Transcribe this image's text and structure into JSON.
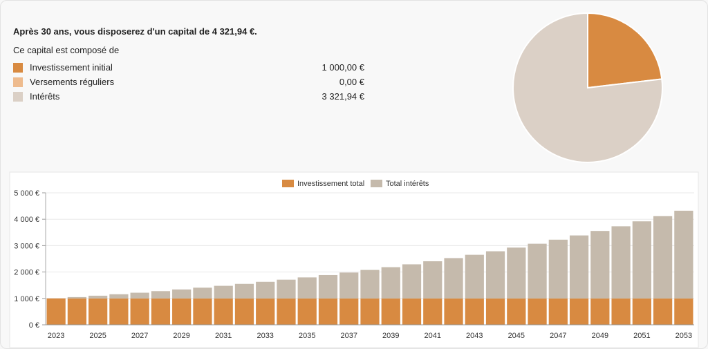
{
  "summary": {
    "headline": "Après 30 ans, vous disposerez d'un capital de 4 321,94 €.",
    "composition_label": "Ce capital est composé de",
    "items": [
      {
        "label": "Investissement initial",
        "value": "1 000,00 €",
        "color": "#d88a41"
      },
      {
        "label": "Versements réguliers",
        "value": "0,00 €",
        "color": "#eebb8e"
      },
      {
        "label": "Intérêts",
        "value": "3 321,94 €",
        "color": "#dbd0c6"
      }
    ]
  },
  "chart_data": [
    {
      "type": "pie",
      "slices": [
        {
          "label": "Investissement initial",
          "value": 1000.0,
          "color": "#d88a41"
        },
        {
          "label": "Versements réguliers",
          "value": 0.0,
          "color": "#eebb8e"
        },
        {
          "label": "Intérêts",
          "value": 3321.94,
          "color": "#dbd0c6"
        }
      ]
    },
    {
      "type": "bar",
      "stacked": true,
      "legend_position": "top",
      "grid": true,
      "ylim": [
        0,
        5000
      ],
      "yticks": [
        {
          "v": 0,
          "label": "0 €"
        },
        {
          "v": 1000,
          "label": "1 000 €"
        },
        {
          "v": 2000,
          "label": "2 000 €"
        },
        {
          "v": 3000,
          "label": "3 000 €"
        },
        {
          "v": 4000,
          "label": "4 000 €"
        },
        {
          "v": 5000,
          "label": "5 000 €"
        }
      ],
      "categories": [
        "2023",
        "2024",
        "2025",
        "2026",
        "2027",
        "2028",
        "2029",
        "2030",
        "2031",
        "2032",
        "2033",
        "2034",
        "2035",
        "2036",
        "2037",
        "2038",
        "2039",
        "2040",
        "2041",
        "2042",
        "2043",
        "2044",
        "2045",
        "2046",
        "2047",
        "2048",
        "2049",
        "2050",
        "2051",
        "2052",
        "2053"
      ],
      "xtick_labels": [
        "2023",
        "2025",
        "2027",
        "2029",
        "2031",
        "2033",
        "2035",
        "2037",
        "2039",
        "2041",
        "2043",
        "2045",
        "2047",
        "2049",
        "2051",
        "2053"
      ],
      "series": [
        {
          "name": "Investissement total",
          "color": "#d88a41",
          "values": [
            1000,
            1000,
            1000,
            1000,
            1000,
            1000,
            1000,
            1000,
            1000,
            1000,
            1000,
            1000,
            1000,
            1000,
            1000,
            1000,
            1000,
            1000,
            1000,
            1000,
            1000,
            1000,
            1000,
            1000,
            1000,
            1000,
            1000,
            1000,
            1000,
            1000,
            1000
          ]
        },
        {
          "name": "Total intérêts",
          "color": "#c5baac",
          "values": [
            0,
            50,
            103,
            158,
            216,
            276,
            340,
            407,
            477,
            551,
            629,
            710,
            796,
            886,
            980,
            1079,
            1183,
            1292,
            1407,
            1527,
            1653,
            1786,
            1925,
            2072,
            2225,
            2386,
            2556,
            2733,
            2920,
            3116,
            3322
          ]
        }
      ]
    }
  ]
}
